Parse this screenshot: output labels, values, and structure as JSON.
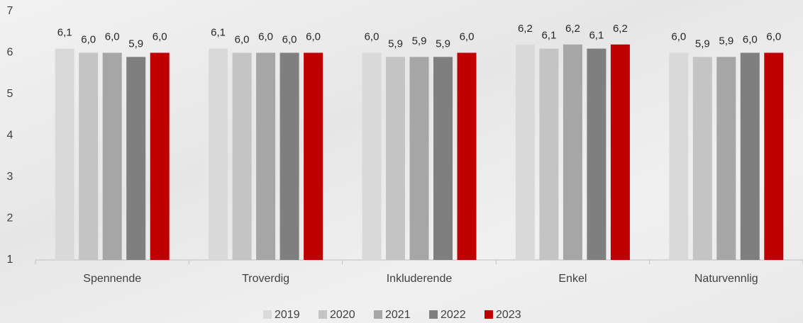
{
  "chart_data": {
    "type": "bar",
    "categories": [
      "Spennende",
      "Troverdig",
      "Inkluderende",
      "Enkel",
      "Naturvennlig"
    ],
    "series": [
      {
        "name": "2019",
        "color": "#d9d9d9",
        "values": [
          6.1,
          6.1,
          6.0,
          6.2,
          6.0
        ],
        "value_labels": [
          "6,1",
          "6,1",
          "6,0",
          "6,2",
          "6,0"
        ]
      },
      {
        "name": "2020",
        "color": "#c4c4c4",
        "values": [
          6.0,
          6.0,
          5.9,
          6.1,
          5.9
        ],
        "value_labels": [
          "6,0",
          "6,0",
          "5,9",
          "6,1",
          "5,9"
        ]
      },
      {
        "name": "2021",
        "color": "#a6a6a6",
        "values": [
          6.0,
          6.0,
          5.9,
          6.2,
          5.9
        ],
        "value_labels": [
          "6,0",
          "6,0",
          "5,9",
          "6,2",
          "5,9"
        ]
      },
      {
        "name": "2022",
        "color": "#7f7f7f",
        "values": [
          5.9,
          6.0,
          5.9,
          6.1,
          6.0
        ],
        "value_labels": [
          "5,9",
          "6,0",
          "5,9",
          "6,1",
          "6,0"
        ]
      },
      {
        "name": "2023",
        "color": "#c00000",
        "values": [
          6.0,
          6.0,
          6.0,
          6.2,
          6.0
        ],
        "value_labels": [
          "6,0",
          "6,0",
          "6,0",
          "6,2",
          "6,0"
        ]
      }
    ],
    "ylim": [
      1,
      7
    ],
    "yticks": [
      1,
      2,
      3,
      4,
      5,
      6,
      7
    ],
    "grid": false,
    "legend": "bottom"
  }
}
